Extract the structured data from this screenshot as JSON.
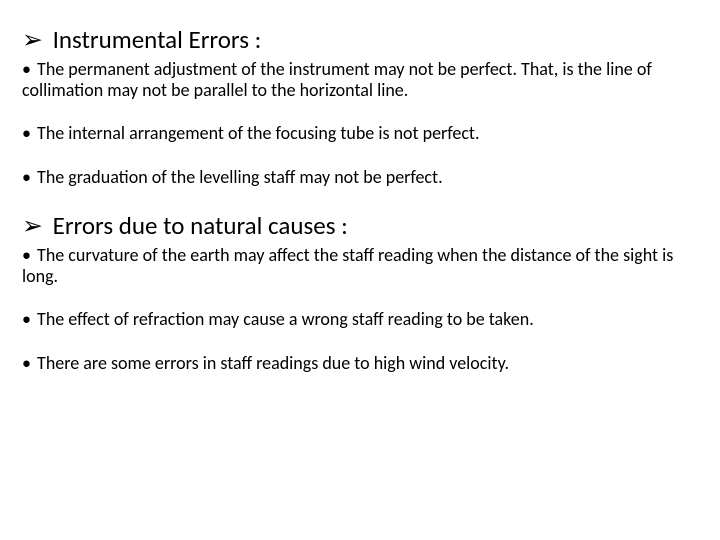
{
  "sections": [
    {
      "heading_marker": "➢",
      "heading_text": "Instrumental Errors :",
      "items": [
        "The permanent adjustment of the instrument may not be perfect. That, is the line of collimation may not be parallel to the horizontal line.",
        "The internal arrangement of the focusing tube is not perfect.",
        "The graduation of the levelling staff may not be perfect."
      ]
    },
    {
      "heading_marker": "➢",
      "heading_text": "Errors due to natural causes :",
      "items": [
        "The curvature of the earth may affect the staff reading when the distance of the sight is long.",
        "The effect of refraction may cause a wrong staff reading to be taken.",
        "There are some errors in staff readings due to high wind velocity."
      ]
    }
  ],
  "bullet_marker": "•"
}
